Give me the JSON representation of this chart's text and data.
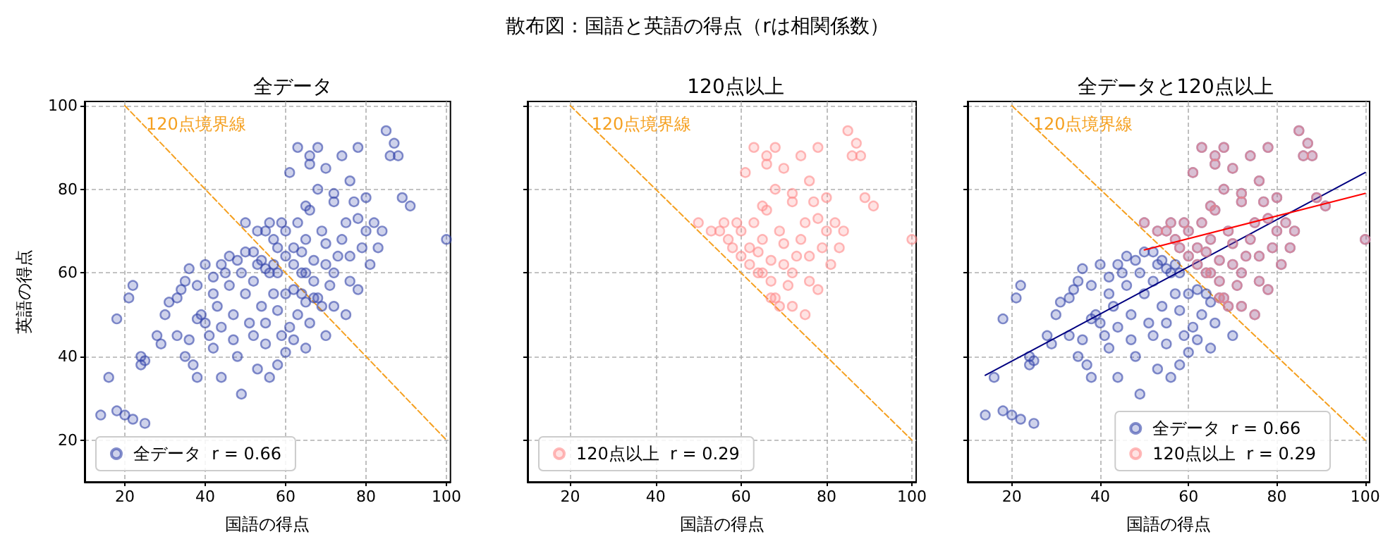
{
  "chart_data": [
    {
      "type": "scatter",
      "title": "全データ",
      "xlabel": "国語の得点",
      "ylabel": "英語の得点",
      "xlim": [
        10,
        101
      ],
      "ylim": [
        10,
        101
      ],
      "xticks": [
        20,
        40,
        60,
        80,
        100
      ],
      "yticks": [
        20,
        40,
        60,
        80,
        100
      ],
      "grid": true,
      "legend": "bottom left",
      "marker": "circle",
      "annotations": [
        "散布図：国語と英語の得点（rは相関係数）"
      ],
      "series": [
        {
          "type": "line",
          "name": "120点境界線",
          "color": "#f5a020",
          "line_style": "dashed",
          "marker": "none",
          "x": [
            20,
            100
          ],
          "values": [
            100,
            20
          ]
        },
        {
          "name": "全データ  r = 0.66",
          "color": "#3344aa",
          "x": [
            14,
            16,
            18,
            20,
            22,
            25,
            18,
            21,
            22,
            24,
            24,
            25,
            28,
            29,
            30,
            31,
            33,
            34,
            33,
            35,
            36,
            37,
            38,
            36,
            38,
            39,
            40,
            40,
            41,
            42,
            42,
            43,
            44,
            44,
            45,
            46,
            47,
            47,
            48,
            49,
            48,
            50,
            50,
            51,
            52,
            52,
            53,
            54,
            55,
            55,
            56,
            57,
            58,
            58,
            59,
            60,
            61,
            53,
            56,
            62,
            63,
            64,
            65,
            65,
            66,
            62,
            52,
            54,
            55,
            57,
            58,
            49,
            46,
            44,
            42,
            38,
            35,
            60,
            70,
            55,
            57,
            60,
            60,
            62,
            62,
            63,
            64,
            65,
            65,
            66,
            67,
            67,
            68,
            68,
            69,
            70,
            70,
            70,
            71,
            72,
            72,
            73,
            74,
            74,
            75,
            75,
            76,
            76,
            77,
            78,
            78,
            79,
            80,
            80,
            81,
            82,
            83,
            84,
            85,
            86,
            87,
            88,
            89,
            91,
            100,
            61,
            63,
            65,
            66,
            59,
            58,
            64,
            69,
            67,
            72,
            66,
            68,
            72,
            76,
            78,
            50,
            53,
            56
          ],
          "values": [
            26,
            35,
            27,
            26,
            25,
            24,
            49,
            54,
            57,
            40,
            38,
            39,
            45,
            43,
            50,
            53,
            54,
            56,
            45,
            40,
            44,
            38,
            35,
            61,
            57,
            50,
            62,
            48,
            45,
            42,
            55,
            52,
            47,
            35,
            60,
            57,
            50,
            44,
            40,
            31,
            63,
            65,
            55,
            48,
            45,
            58,
            62,
            52,
            48,
            43,
            60,
            55,
            51,
            38,
            45,
            41,
            47,
            37,
            35,
            44,
            50,
            55,
            53,
            42,
            48,
            56,
            65,
            63,
            61,
            62,
            60,
            60,
            64,
            62,
            59,
            49,
            58,
            55,
            45,
            70,
            68,
            64,
            70,
            62,
            66,
            72,
            65,
            60,
            68,
            75,
            63,
            58,
            54,
            80,
            70,
            62,
            67,
            85,
            57,
            77,
            60,
            64,
            88,
            68,
            72,
            50,
            82,
            64,
            77,
            73,
            90,
            66,
            78,
            70,
            62,
            72,
            66,
            70,
            94,
            88,
            91,
            88,
            78,
            76,
            68,
            84,
            90,
            76,
            88,
            72,
            66,
            60,
            52,
            54,
            52,
            86,
            90,
            79,
            58,
            56,
            72,
            70,
            72
          ]
        }
      ]
    },
    {
      "type": "scatter",
      "title": "120点以上",
      "xlabel": "国語の得点",
      "xlim": [
        10,
        101
      ],
      "ylim": [
        10,
        101
      ],
      "xticks": [
        20,
        40,
        60,
        80,
        100
      ],
      "yticks": [
        20,
        40,
        60,
        80,
        100
      ],
      "grid": true,
      "legend": "bottom left",
      "marker": "circle",
      "tick_labels": "x",
      "series": [
        {
          "type": "line",
          "name": "120点境界線",
          "color": "#f5a020",
          "line_style": "dashed",
          "marker": "none",
          "x": [
            20,
            100
          ],
          "values": [
            100,
            20
          ]
        },
        {
          "name": "120点以上  r = 0.29",
          "color": "#ff8a8a",
          "x": [
            55,
            57,
            60,
            60,
            62,
            62,
            63,
            64,
            65,
            65,
            66,
            67,
            67,
            68,
            68,
            69,
            70,
            70,
            70,
            71,
            72,
            72,
            73,
            74,
            74,
            75,
            75,
            76,
            76,
            77,
            78,
            78,
            79,
            80,
            80,
            81,
            82,
            83,
            84,
            85,
            86,
            87,
            88,
            89,
            91,
            100,
            61,
            63,
            65,
            66,
            59,
            58,
            64,
            69,
            67,
            72,
            66,
            68,
            72,
            76,
            78,
            50,
            53,
            56
          ],
          "values": [
            70,
            68,
            64,
            70,
            62,
            66,
            72,
            65,
            60,
            68,
            75,
            63,
            58,
            54,
            80,
            70,
            62,
            67,
            85,
            57,
            77,
            60,
            64,
            88,
            68,
            72,
            50,
            82,
            64,
            77,
            73,
            90,
            66,
            78,
            70,
            62,
            72,
            66,
            70,
            94,
            88,
            91,
            88,
            78,
            76,
            68,
            84,
            90,
            76,
            88,
            72,
            66,
            60,
            52,
            54,
            52,
            86,
            90,
            79,
            58,
            56,
            72,
            70,
            72
          ]
        }
      ]
    },
    {
      "type": "scatter",
      "title": "全データと120点以上",
      "xlabel": "国語の得点",
      "xlim": [
        10,
        101
      ],
      "ylim": [
        10,
        101
      ],
      "xticks": [
        20,
        40,
        60,
        80,
        100
      ],
      "yticks": [
        20,
        40,
        60,
        80,
        100
      ],
      "grid": true,
      "legend": "bottom right",
      "marker": "circle",
      "tick_labels": "x",
      "series": [
        {
          "type": "line",
          "name": "120点境界線",
          "color": "#f5a020",
          "line_style": "dashed",
          "marker": "none",
          "x": [
            20,
            100
          ],
          "values": [
            100,
            20
          ]
        },
        {
          "name": "全データ  r = 0.66",
          "color": "#3344aa",
          "x": [
            14,
            16,
            18,
            20,
            22,
            25,
            18,
            21,
            22,
            24,
            24,
            25,
            28,
            29,
            30,
            31,
            33,
            34,
            33,
            35,
            36,
            37,
            38,
            36,
            38,
            39,
            40,
            40,
            41,
            42,
            42,
            43,
            44,
            44,
            45,
            46,
            47,
            47,
            48,
            49,
            48,
            50,
            50,
            51,
            52,
            52,
            53,
            54,
            55,
            55,
            56,
            57,
            58,
            58,
            59,
            60,
            61,
            53,
            56,
            62,
            63,
            64,
            65,
            65,
            66,
            62,
            52,
            54,
            55,
            57,
            58,
            49,
            46,
            44,
            42,
            38,
            35,
            60,
            70,
            55,
            57,
            60,
            60,
            62,
            62,
            63,
            64,
            65,
            65,
            66,
            67,
            67,
            68,
            68,
            69,
            70,
            70,
            70,
            71,
            72,
            72,
            73,
            74,
            74,
            75,
            75,
            76,
            76,
            77,
            78,
            78,
            79,
            80,
            80,
            81,
            82,
            83,
            84,
            85,
            86,
            87,
            88,
            89,
            91,
            100,
            61,
            63,
            65,
            66,
            59,
            58,
            64,
            69,
            67,
            72,
            66,
            68,
            72,
            76,
            78,
            50,
            53,
            56
          ],
          "values": [
            26,
            35,
            27,
            26,
            25,
            24,
            49,
            54,
            57,
            40,
            38,
            39,
            45,
            43,
            50,
            53,
            54,
            56,
            45,
            40,
            44,
            38,
            35,
            61,
            57,
            50,
            62,
            48,
            45,
            42,
            55,
            52,
            47,
            35,
            60,
            57,
            50,
            44,
            40,
            31,
            63,
            65,
            55,
            48,
            45,
            58,
            62,
            52,
            48,
            43,
            60,
            55,
            51,
            38,
            45,
            41,
            47,
            37,
            35,
            44,
            50,
            55,
            53,
            42,
            48,
            56,
            65,
            63,
            61,
            62,
            60,
            60,
            64,
            62,
            59,
            49,
            58,
            55,
            45,
            70,
            68,
            64,
            70,
            62,
            66,
            72,
            65,
            60,
            68,
            75,
            63,
            58,
            54,
            80,
            70,
            62,
            67,
            85,
            57,
            77,
            60,
            64,
            88,
            68,
            72,
            50,
            82,
            64,
            77,
            73,
            90,
            66,
            78,
            70,
            62,
            72,
            66,
            70,
            94,
            88,
            91,
            88,
            78,
            76,
            68,
            84,
            90,
            76,
            88,
            72,
            66,
            60,
            52,
            54,
            52,
            86,
            90,
            79,
            58,
            56,
            72,
            70,
            72
          ]
        },
        {
          "name": "120点以上  r = 0.29",
          "color": "#ff8a8a",
          "x": [
            55,
            57,
            60,
            60,
            62,
            62,
            63,
            64,
            65,
            65,
            66,
            67,
            67,
            68,
            68,
            69,
            70,
            70,
            70,
            71,
            72,
            72,
            73,
            74,
            74,
            75,
            75,
            76,
            76,
            77,
            78,
            78,
            79,
            80,
            80,
            81,
            82,
            83,
            84,
            85,
            86,
            87,
            88,
            89,
            91,
            100,
            61,
            63,
            65,
            66,
            59,
            58,
            64,
            69,
            67,
            72,
            66,
            68,
            72,
            76,
            78,
            50,
            53,
            56
          ],
          "values": [
            70,
            68,
            64,
            70,
            62,
            66,
            72,
            65,
            60,
            68,
            75,
            63,
            58,
            54,
            80,
            70,
            62,
            67,
            85,
            57,
            77,
            60,
            64,
            88,
            68,
            72,
            50,
            82,
            64,
            77,
            73,
            90,
            66,
            78,
            70,
            62,
            72,
            66,
            70,
            94,
            88,
            91,
            88,
            78,
            76,
            68,
            84,
            90,
            76,
            88,
            72,
            66,
            60,
            52,
            54,
            52,
            86,
            90,
            79,
            58,
            56,
            72,
            70,
            72
          ]
        },
        {
          "type": "line",
          "color": "#000080",
          "line_style": "solid",
          "marker": "none",
          "x": [
            14,
            100
          ],
          "values": [
            35.5,
            84
          ]
        },
        {
          "type": "line",
          "color": "#ff0000",
          "line_style": "solid",
          "marker": "none",
          "x": [
            50,
            100
          ],
          "values": [
            65.5,
            79
          ]
        }
      ]
    }
  ]
}
